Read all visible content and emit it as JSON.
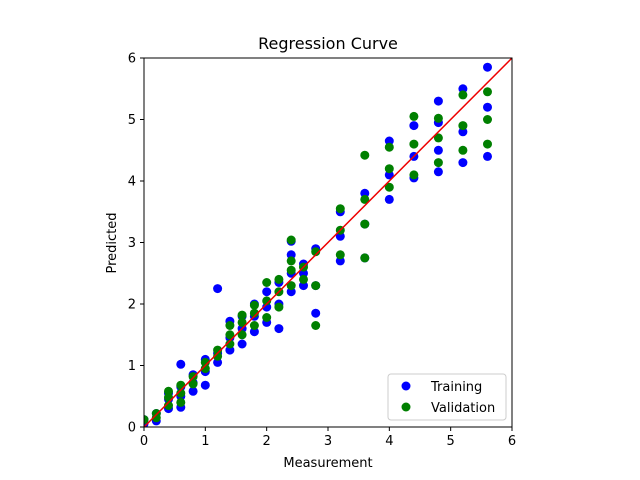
{
  "chart_data": {
    "type": "scatter",
    "title": "Regression Curve",
    "xlabel": "Measurement",
    "ylabel": "Predicted",
    "xlim": [
      0,
      6
    ],
    "ylim": [
      0,
      6
    ],
    "x_ticks": [
      "0",
      "1",
      "2",
      "3",
      "4",
      "5",
      "6"
    ],
    "y_ticks": [
      "0",
      "1",
      "2",
      "3",
      "4",
      "5",
      "6"
    ],
    "grid": false,
    "legend_position": "bottom-right",
    "reference_line": {
      "x": [
        0,
        6
      ],
      "y": [
        0,
        6
      ],
      "color": "#ee0000"
    },
    "series": [
      {
        "name": "Training",
        "color": "#0000ff",
        "x": [
          0,
          0,
          0.2,
          0.2,
          0.4,
          0.4,
          0.4,
          0.6,
          0.6,
          0.6,
          0.8,
          0.8,
          0.8,
          1.0,
          1.0,
          1.0,
          1.2,
          1.2,
          1.4,
          1.4,
          1.4,
          1.6,
          1.6,
          1.6,
          1.8,
          1.8,
          1.8,
          2.0,
          2.0,
          2.0,
          2.2,
          2.2,
          2.2,
          2.4,
          2.4,
          2.4,
          2.6,
          2.6,
          2.6,
          2.8,
          2.8,
          2.8,
          3.2,
          3.2,
          3.2,
          3.6,
          3.6,
          3.6,
          4.0,
          4.0,
          4.0,
          4.4,
          4.4,
          4.4,
          4.8,
          4.8,
          4.8,
          5.2,
          5.2,
          5.2,
          5.6,
          5.6,
          5.6,
          0.6,
          1.2,
          2.4,
          4.8
        ],
        "y": [
          0.05,
          0.12,
          0.1,
          0.22,
          0.3,
          0.45,
          0.55,
          0.32,
          0.5,
          0.65,
          0.58,
          0.72,
          0.85,
          0.68,
          0.9,
          1.1,
          1.05,
          1.2,
          1.25,
          1.45,
          1.72,
          1.35,
          1.6,
          1.8,
          1.55,
          1.8,
          2.0,
          1.7,
          1.95,
          2.2,
          1.6,
          2.0,
          2.35,
          2.2,
          2.5,
          2.8,
          2.3,
          2.5,
          2.65,
          1.85,
          2.3,
          2.9,
          2.7,
          3.1,
          3.5,
          2.75,
          3.3,
          3.8,
          3.7,
          4.1,
          4.65,
          4.05,
          4.4,
          4.9,
          4.15,
          4.5,
          4.95,
          4.3,
          4.8,
          5.5,
          4.4,
          5.2,
          5.85,
          1.02,
          2.25,
          3.02,
          5.3
        ]
      },
      {
        "name": "Validation",
        "color": "#008000",
        "x": [
          0,
          0.2,
          0.2,
          0.4,
          0.4,
          0.4,
          0.6,
          0.6,
          0.6,
          0.8,
          0.8,
          1.0,
          1.0,
          1.2,
          1.2,
          1.4,
          1.4,
          1.4,
          1.6,
          1.6,
          1.6,
          1.8,
          1.8,
          1.8,
          2.0,
          2.0,
          2.0,
          2.2,
          2.2,
          2.2,
          2.4,
          2.4,
          2.4,
          2.6,
          2.6,
          2.8,
          2.8,
          2.8,
          3.2,
          3.2,
          3.2,
          3.6,
          3.6,
          3.6,
          3.6,
          4.0,
          4.0,
          4.0,
          4.4,
          4.4,
          4.4,
          4.8,
          4.8,
          4.8,
          5.2,
          5.2,
          5.2,
          5.6,
          5.6,
          5.6,
          2.4
        ],
        "y": [
          0.12,
          0.15,
          0.22,
          0.35,
          0.48,
          0.58,
          0.4,
          0.55,
          0.68,
          0.7,
          0.82,
          0.95,
          1.05,
          1.15,
          1.25,
          1.35,
          1.5,
          1.65,
          1.5,
          1.7,
          1.82,
          1.65,
          1.85,
          1.98,
          1.78,
          2.05,
          2.35,
          1.95,
          2.2,
          2.4,
          2.3,
          2.55,
          2.7,
          2.4,
          2.6,
          1.65,
          2.3,
          2.85,
          2.8,
          3.2,
          3.55,
          2.75,
          3.3,
          3.7,
          4.42,
          3.9,
          4.2,
          4.55,
          4.1,
          4.6,
          5.05,
          4.3,
          4.7,
          5.02,
          4.5,
          4.9,
          5.4,
          4.6,
          5.0,
          5.45,
          3.04
        ]
      }
    ]
  }
}
